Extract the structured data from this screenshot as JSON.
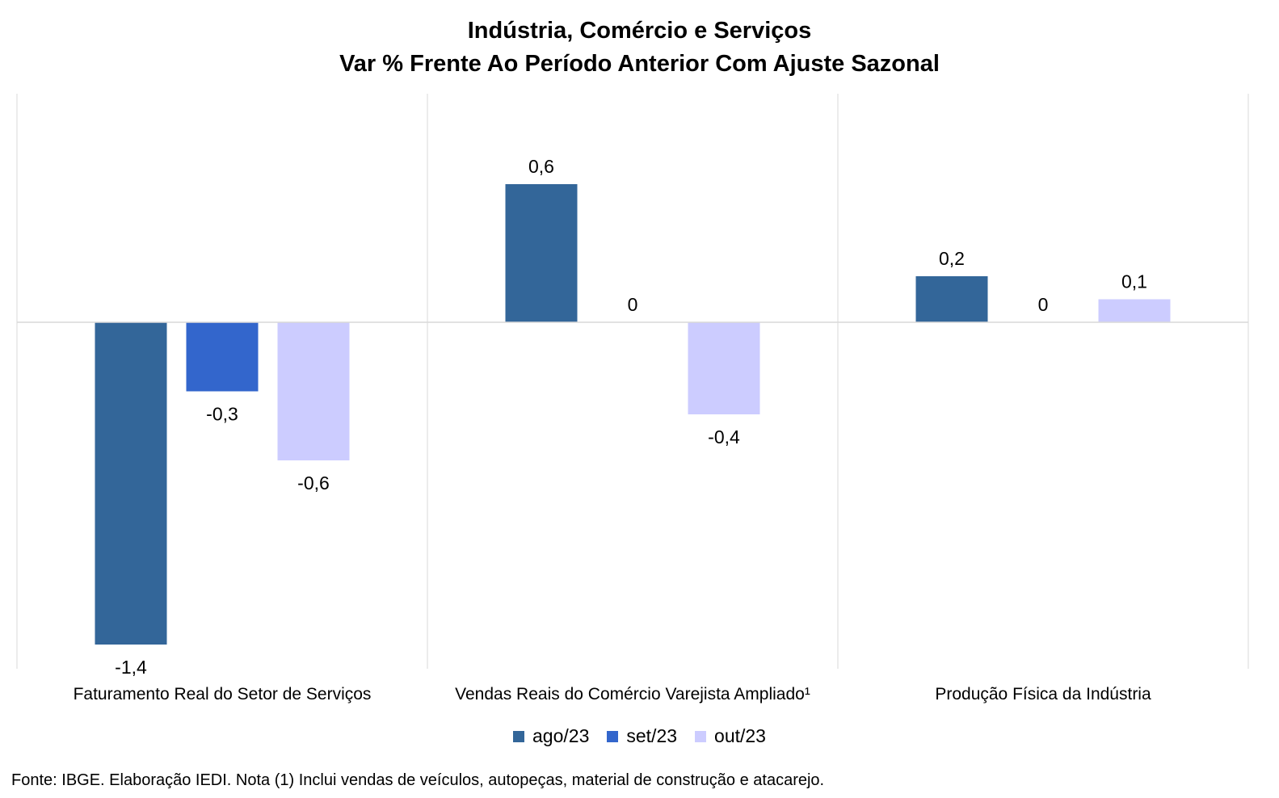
{
  "title_line1": "Indústria, Comércio e Serviços",
  "title_line2": "Var % Frente Ao Período Anterior Com Ajuste Sazonal",
  "source_note": "Fonte: IBGE. Elaboração IEDI. Nota (1) Inclui vendas de veículos, autopeças, material de construção e atacarejo.",
  "chart_data": {
    "type": "bar",
    "title": "Indústria, Comércio e Serviços — Var % Frente Ao Período Anterior Com Ajuste Sazonal",
    "categories": [
      "Faturamento Real do Setor de Serviços",
      "Vendas Reais do Comércio Varejista Ampliado¹",
      "Produção Física da Indústria"
    ],
    "series": [
      {
        "name": "ago/23",
        "color": "#336699",
        "values": [
          -1.4,
          0.6,
          0.2
        ],
        "labels": [
          "-1,4",
          "0,6",
          "0,2"
        ]
      },
      {
        "name": "set/23",
        "color": "#3366cc",
        "values": [
          -0.3,
          0,
          0
        ],
        "labels": [
          "-0,3",
          "0",
          "0"
        ]
      },
      {
        "name": "out/23",
        "color": "#ccccff",
        "values": [
          -0.6,
          -0.4,
          0.1
        ],
        "labels": [
          "-0,6",
          "-0,4",
          "0,1"
        ]
      }
    ],
    "ylim": [
      -1.5,
      1.0
    ],
    "grid": false,
    "legend_position": "bottom"
  }
}
